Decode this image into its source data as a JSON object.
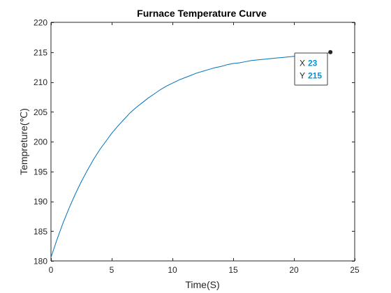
{
  "chart_data": {
    "type": "line",
    "title": "Furnace Temperature Curve",
    "xlabel": "Time(S)",
    "ylabel": "Tempreture(℃)",
    "xlim": [
      0,
      25
    ],
    "ylim": [
      180,
      220
    ],
    "xticks": [
      0,
      5,
      10,
      15,
      20,
      25
    ],
    "yticks": [
      180,
      185,
      190,
      195,
      200,
      205,
      210,
      215,
      220
    ],
    "xtick_labels": [
      "0",
      "5",
      "10",
      "15",
      "20",
      "25"
    ],
    "ytick_labels": [
      "180",
      "185",
      "190",
      "195",
      "200",
      "205",
      "210",
      "215",
      "220"
    ],
    "grid": false,
    "series": [
      {
        "color": "#0072bd",
        "x": [
          0,
          0.5,
          1,
          1.5,
          2,
          2.5,
          3,
          3.5,
          4,
          4.5,
          5,
          5.5,
          6,
          6.5,
          7,
          7.5,
          8,
          8.5,
          9,
          9.5,
          10,
          10.5,
          11,
          11.5,
          12,
          12.5,
          13,
          13.5,
          14,
          14.5,
          15,
          15.5,
          16,
          16.5,
          17,
          17.5,
          18,
          18.5,
          19,
          19.5,
          20,
          20.5,
          21,
          21.5,
          22,
          22.5,
          23
        ],
        "y": [
          180.6,
          183.6,
          186.4,
          188.9,
          191.2,
          193.3,
          195.2,
          197.0,
          198.6,
          200.0,
          201.4,
          202.6,
          203.7,
          204.8,
          205.7,
          206.5,
          207.3,
          208.0,
          208.7,
          209.3,
          209.8,
          210.3,
          210.7,
          211.1,
          211.5,
          211.8,
          212.1,
          212.4,
          212.6,
          212.9,
          213.1,
          213.2,
          213.4,
          213.6,
          213.7,
          213.8,
          213.9,
          214.0,
          214.1,
          214.2,
          214.3,
          214.4,
          214.5,
          214.6,
          214.7,
          214.8,
          214.9
        ]
      }
    ],
    "datatip": {
      "x_label": "X",
      "x_value": "23",
      "y_label": "Y",
      "y_value": "215",
      "point": [
        23,
        215
      ],
      "value_color": "#0094e1",
      "marker_color": "#262626"
    },
    "colors": {
      "axis": "#262626",
      "tip_border": "#404040"
    }
  }
}
